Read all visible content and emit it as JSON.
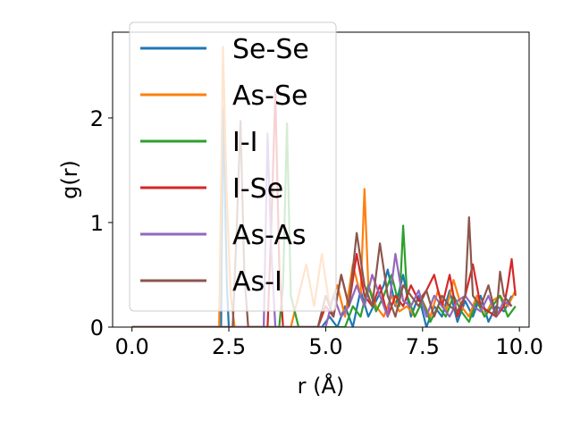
{
  "chart_data": {
    "type": "line",
    "xlabel": "r (Å)",
    "ylabel": "g(r)",
    "xlim": [
      -0.5,
      10.25
    ],
    "ylim": [
      0,
      2.82
    ],
    "xticks": [
      0.0,
      2.5,
      5.0,
      7.5,
      10.0
    ],
    "xtick_labels": [
      "0.0",
      "2.5",
      "5.0",
      "7.5",
      "10.0"
    ],
    "yticks": [
      0,
      1,
      2
    ],
    "ytick_labels": [
      "0",
      "1",
      "2"
    ],
    "grid": false,
    "legend_position": "upper-left",
    "series": [
      {
        "name": "Se-Se",
        "color": "#1f77b4",
        "x": [
          0,
          1,
          2,
          2.3,
          2.35,
          2.45,
          2.5,
          2.6,
          4.9,
          5.1,
          5.3,
          5.5,
          5.7,
          5.9,
          6.1,
          6.3,
          6.5,
          6.6,
          6.8,
          7.0,
          7.2,
          7.4,
          7.6,
          7.8,
          8.0,
          8.2,
          8.4,
          8.6,
          8.8,
          9.0,
          9.2,
          9.4,
          9.6,
          9.8
        ],
        "y": [
          0,
          0,
          0,
          0,
          2.1,
          0.4,
          0,
          0,
          0,
          0.1,
          0,
          0.2,
          0,
          0.35,
          0.1,
          0.25,
          0.4,
          0.55,
          0.2,
          0.5,
          0.1,
          0.3,
          0,
          0.2,
          0.1,
          0.35,
          0.05,
          0.25,
          0.1,
          0.3,
          0.05,
          0.2,
          0.15,
          0.3
        ]
      },
      {
        "name": "As-Se",
        "color": "#ff7f0e",
        "x": [
          0,
          1,
          2,
          2.25,
          2.35,
          2.45,
          2.55,
          2.65,
          4.1,
          4.3,
          4.5,
          4.7,
          4.9,
          5.1,
          5.3,
          5.5,
          5.7,
          5.9,
          6.0,
          6.1,
          6.3,
          6.5,
          6.7,
          6.9,
          7.1,
          7.3,
          7.5,
          7.7,
          7.9,
          8.1,
          8.3,
          8.5,
          8.7,
          8.9,
          9.1,
          9.3,
          9.5,
          9.7,
          9.9
        ],
        "y": [
          0,
          0,
          0,
          0,
          2.68,
          1.2,
          0.3,
          0,
          0,
          0.3,
          0.6,
          0.2,
          0.7,
          0.2,
          0.4,
          0.1,
          0.6,
          0.3,
          1.32,
          0.4,
          0.2,
          0.1,
          0.3,
          0.15,
          0.2,
          0.1,
          0.25,
          0.1,
          0.35,
          0.15,
          0.45,
          0.2,
          0.1,
          0.3,
          0.1,
          0.25,
          0.3,
          0.2,
          0.35
        ]
      },
      {
        "name": "I-I",
        "color": "#2ca02c",
        "x": [
          0,
          1,
          2,
          3,
          3.8,
          3.9,
          4.0,
          4.1,
          4.3,
          5.5,
          5.7,
          5.9,
          6.1,
          6.3,
          6.5,
          6.7,
          6.9,
          7.0,
          7.1,
          7.3,
          7.5,
          7.7,
          7.9,
          8.1,
          8.3,
          8.5,
          8.7,
          8.9,
          9.1,
          9.3,
          9.5,
          9.7,
          9.9
        ],
        "y": [
          0,
          0,
          0,
          0,
          0,
          0.4,
          1.95,
          0.3,
          0,
          0,
          0.2,
          0.1,
          0.4,
          0.15,
          0.3,
          0.5,
          0.2,
          0.97,
          0.3,
          0.1,
          0.25,
          0.05,
          0.2,
          0.1,
          0.3,
          0.15,
          0.05,
          0.25,
          0.1,
          0.2,
          0.3,
          0.1,
          0.2
        ]
      },
      {
        "name": "I-Se",
        "color": "#d62728",
        "x": [
          0,
          1,
          2,
          3,
          3.5,
          3.6,
          3.7,
          3.8,
          3.9,
          4.8,
          5.0,
          5.2,
          5.4,
          5.6,
          5.8,
          6.0,
          6.2,
          6.4,
          6.6,
          6.8,
          7.0,
          7.2,
          7.4,
          7.6,
          7.8,
          8.0,
          8.2,
          8.4,
          8.6,
          8.8,
          9.0,
          9.2,
          9.4,
          9.6,
          9.7,
          9.8,
          9.9
        ],
        "y": [
          0,
          0,
          0,
          0,
          0,
          1.0,
          2.25,
          0.6,
          0,
          0,
          0.2,
          0.1,
          0.5,
          0.2,
          0.7,
          0.3,
          0.2,
          0.4,
          0.1,
          0.3,
          0.2,
          0.4,
          0.25,
          0.35,
          0.5,
          0.2,
          0.5,
          0.1,
          0.3,
          0.6,
          0.2,
          0.15,
          0.1,
          0.2,
          0.4,
          0.65,
          0.3
        ]
      },
      {
        "name": "As-As",
        "color": "#9467bd",
        "x": [
          0,
          1,
          2,
          3,
          3.4,
          3.5,
          3.6,
          3.7,
          5.0,
          5.2,
          5.4,
          5.6,
          5.8,
          6.0,
          6.2,
          6.4,
          6.6,
          6.8,
          7.0,
          7.2,
          7.4,
          7.6,
          7.8,
          8.0,
          8.2,
          8.4,
          8.6,
          8.8,
          9.0,
          9.2,
          9.4,
          9.6,
          9.8
        ],
        "y": [
          0,
          0,
          0,
          0,
          0,
          1.85,
          0.7,
          0,
          0,
          0.3,
          0.1,
          0.2,
          0.4,
          0.2,
          0.5,
          0.3,
          0.1,
          0.7,
          0.25,
          0.2,
          0.35,
          0.1,
          0.3,
          0.2,
          0.1,
          0.25,
          0.3,
          0.2,
          0.15,
          0.3,
          0.1,
          0.25,
          0.2
        ]
      },
      {
        "name": "As-I",
        "color": "#8c564b",
        "x": [
          0,
          1,
          2,
          2.6,
          2.7,
          2.8,
          2.9,
          3.0,
          4.8,
          5.0,
          5.2,
          5.4,
          5.6,
          5.8,
          6.0,
          6.2,
          6.4,
          6.6,
          6.8,
          7.0,
          7.2,
          7.4,
          7.6,
          7.8,
          8.0,
          8.2,
          8.4,
          8.6,
          8.7,
          8.8,
          9.0,
          9.2,
          9.4,
          9.5,
          9.6,
          9.8
        ],
        "y": [
          0,
          0,
          0,
          0,
          0.9,
          1.97,
          0.5,
          0,
          0,
          0.3,
          0.1,
          0.5,
          0.2,
          0.9,
          0.4,
          0.2,
          0.8,
          0.3,
          0.1,
          0.4,
          0.3,
          0.2,
          0.35,
          0.1,
          0.3,
          0.2,
          0.15,
          0.3,
          1.05,
          0.3,
          0.2,
          0.4,
          0.1,
          0.53,
          0.3,
          0.2
        ]
      }
    ]
  }
}
